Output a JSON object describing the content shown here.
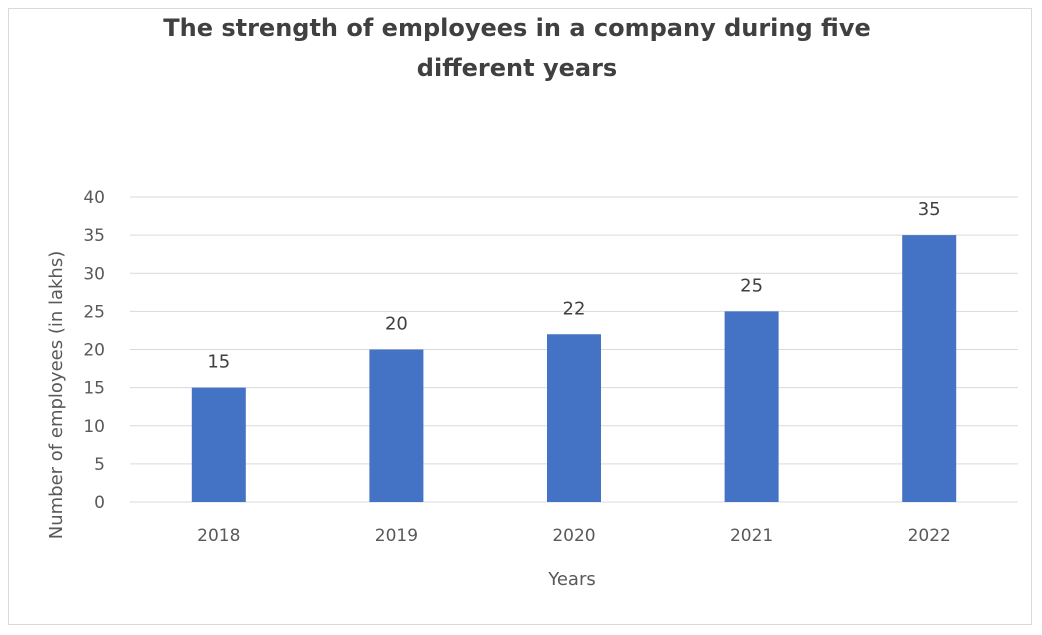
{
  "chart_data": {
    "type": "bar",
    "title_line1": "The strength of employees in a company during five",
    "title_line2": "different years",
    "xlabel": "Years",
    "ylabel": "Number of employees (in lakhs)",
    "categories": [
      "2018",
      "2019",
      "2020",
      "2021",
      "2022"
    ],
    "values": [
      15,
      20,
      22,
      25,
      35
    ],
    "ylim": [
      0,
      40
    ],
    "yticks": [
      0,
      5,
      10,
      15,
      20,
      25,
      30,
      35,
      40
    ],
    "grid": true,
    "legend": "none",
    "bar_color": "#4472c4",
    "grid_color": "#d9d9d9",
    "data_labels": true
  }
}
